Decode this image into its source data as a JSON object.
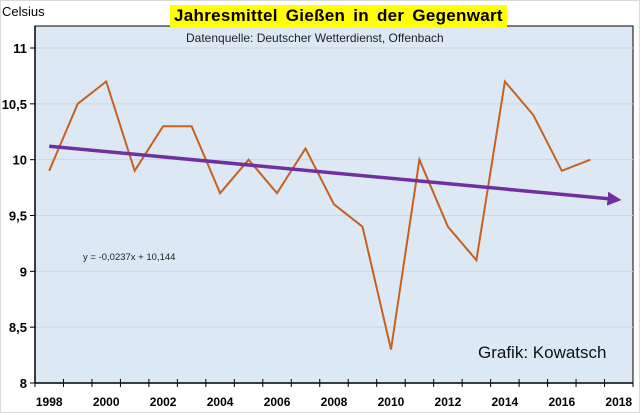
{
  "chart_data": {
    "type": "line",
    "title": "Jahresmittel Gießen in der Gegenwart",
    "subtitle": "Datenquelle: Deutscher Wetterdienst, Offenbach",
    "ylabel": "Celsius",
    "xlabel": "",
    "credit": "Grafik: Kowatsch",
    "ylim": [
      8,
      11.2
    ],
    "yticks": [
      8,
      8.5,
      9,
      9.5,
      10,
      10.5,
      11
    ],
    "ytick_labels": [
      "8",
      "8,5",
      "9",
      "9,5",
      "10",
      "10,5",
      "11"
    ],
    "x_categories": [
      1998,
      1999,
      2000,
      2001,
      2002,
      2003,
      2004,
      2005,
      2006,
      2007,
      2008,
      2009,
      2010,
      2011,
      2012,
      2013,
      2014,
      2015,
      2016,
      2017,
      2018
    ],
    "xtick_labels": [
      "1998",
      "2000",
      "2002",
      "2004",
      "2006",
      "2008",
      "2010",
      "2012",
      "2014",
      "2016",
      "2018"
    ],
    "grid": "horizontal",
    "series": [
      {
        "name": "Jahresmittel",
        "color": "#c8601e",
        "x": [
          1998,
          1999,
          2000,
          2001,
          2002,
          2003,
          2004,
          2005,
          2006,
          2007,
          2008,
          2009,
          2010,
          2011,
          2012,
          2013,
          2014,
          2015,
          2016,
          2017
        ],
        "values": [
          9.9,
          10.5,
          10.7,
          9.9,
          10.3,
          10.3,
          9.7,
          10.0,
          9.7,
          10.1,
          9.6,
          9.4,
          8.3,
          10.0,
          9.4,
          9.1,
          10.7,
          10.4,
          9.9,
          10.0
        ]
      }
    ],
    "trendline": {
      "equation": "y = -0,0237x + 10,144",
      "slope": -0.0237,
      "intercept": 10.144,
      "x_start": 1998,
      "x_end": 2018,
      "color": "#7030a0"
    },
    "colors": {
      "plot_background": "#dce9f5",
      "title_background": "#ffff00"
    }
  }
}
